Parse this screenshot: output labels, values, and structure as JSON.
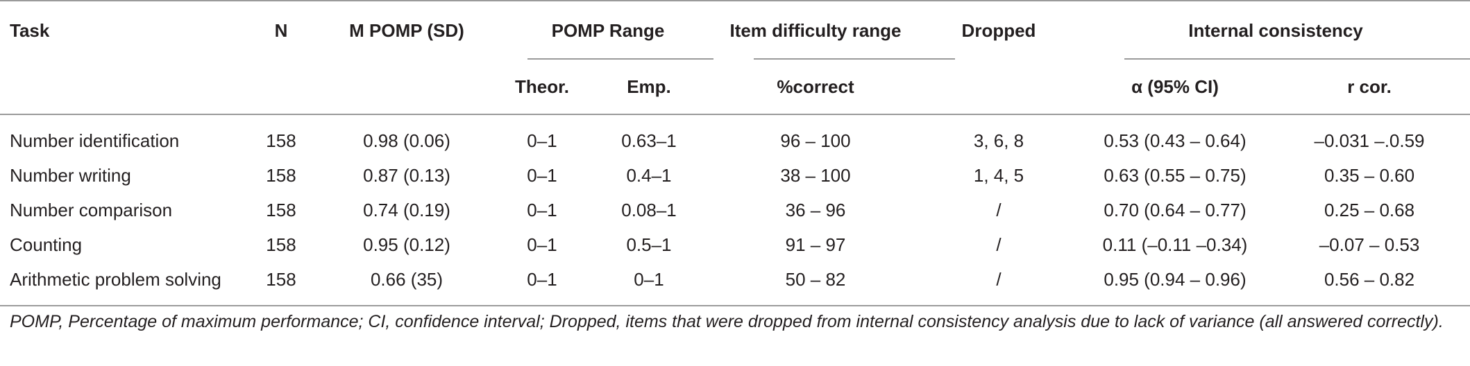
{
  "table": {
    "headers": {
      "task": "Task",
      "n": "N",
      "m_pomp": "M POMP (SD)",
      "pomp_range": "POMP Range",
      "item_difficulty": "Item difficulty range",
      "dropped": "Dropped",
      "internal_consistency": "Internal consistency",
      "theor": "Theor.",
      "emp": "Emp.",
      "pct_correct": "%correct",
      "alpha": "α (95% CI)",
      "r_cor": "r cor."
    },
    "rows": [
      {
        "task": "Number identification",
        "n": "158",
        "m_pomp": "0.98 (0.06)",
        "theor": "0–1",
        "emp": "0.63–1",
        "pct_correct": "96 – 100",
        "dropped": "3, 6, 8",
        "alpha": "0.53 (0.43 – 0.64)",
        "r_cor": "–0.031 –.0.59"
      },
      {
        "task": "Number writing",
        "n": "158",
        "m_pomp": "0.87 (0.13)",
        "theor": "0–1",
        "emp": "0.4–1",
        "pct_correct": "38 – 100",
        "dropped": "1, 4, 5",
        "alpha": "0.63 (0.55 – 0.75)",
        "r_cor": "0.35 – 0.60"
      },
      {
        "task": "Number comparison",
        "n": "158",
        "m_pomp": "0.74 (0.19)",
        "theor": "0–1",
        "emp": "0.08–1",
        "pct_correct": "36 – 96",
        "dropped": "/",
        "alpha": "0.70 (0.64 – 0.77)",
        "r_cor": "0.25 – 0.68"
      },
      {
        "task": "Counting",
        "n": "158",
        "m_pomp": "0.95 (0.12)",
        "theor": "0–1",
        "emp": "0.5–1",
        "pct_correct": "91 – 97",
        "dropped": "/",
        "alpha": "0.11 (–0.11 –0.34)",
        "r_cor": "–0.07 – 0.53"
      },
      {
        "task": "Arithmetic problem solving",
        "n": "158",
        "m_pomp": "0.66 (35)",
        "theor": "0–1",
        "emp": "0–1",
        "pct_correct": "50 – 82",
        "dropped": "/",
        "alpha": "0.95 (0.94 – 0.96)",
        "r_cor": "0.56 – 0.82"
      }
    ]
  },
  "footnote": "POMP, Percentage of maximum performance; CI, confidence interval; Dropped, items that were dropped from internal consistency analysis due to lack of variance (all answered correctly)."
}
